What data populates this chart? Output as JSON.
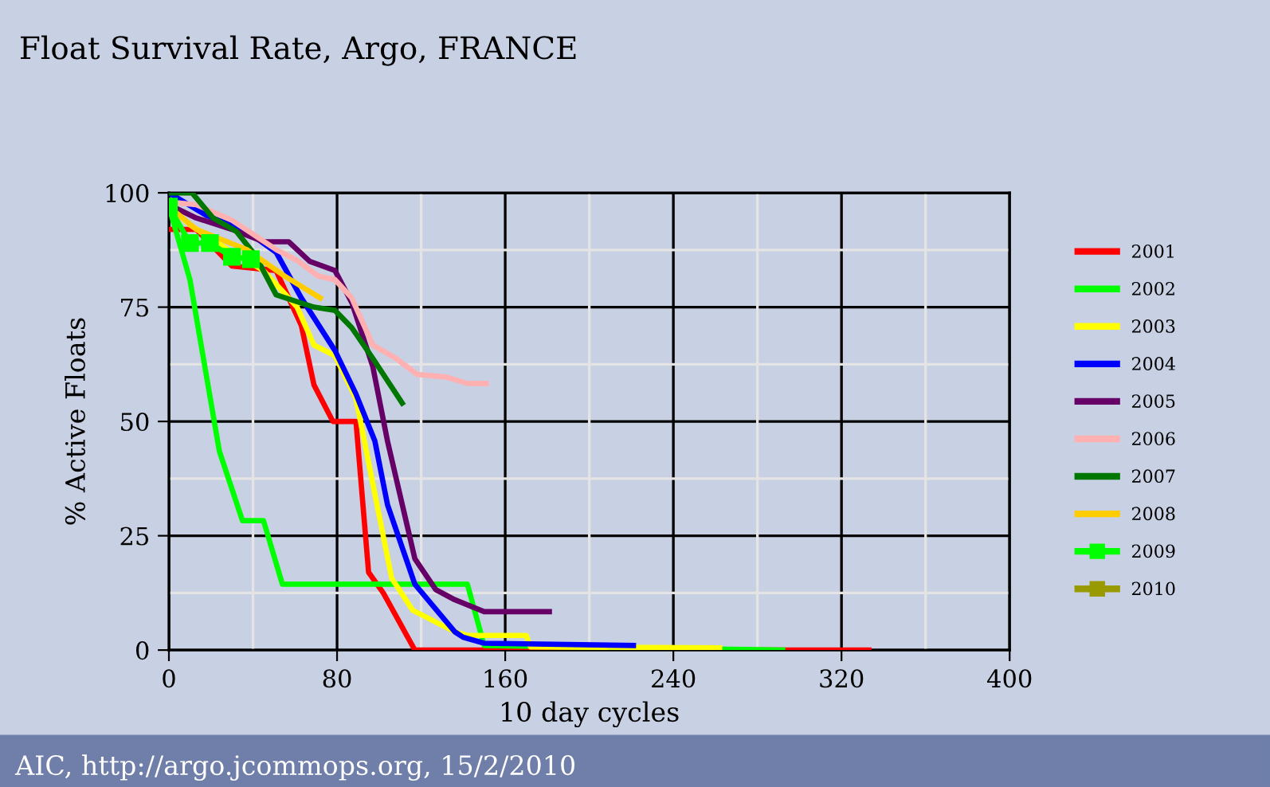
{
  "chart_data": {
    "type": "line",
    "title": "Float Survival Rate, Argo, FRANCE",
    "xlabel": "10 day cycles",
    "ylabel": "% Active Floats",
    "annotations": [
      "AIC, http://argo.jcommops.org, 15/2/2010"
    ],
    "xlim": [
      0,
      400
    ],
    "xticks": [
      0,
      80,
      160,
      240,
      320,
      400
    ],
    "ylim": [
      0,
      100
    ],
    "yticks": [
      0,
      25,
      50,
      75,
      100
    ],
    "grid": true,
    "legend": "right",
    "marker": "none",
    "line_style": "solid",
    "series": [
      {
        "name": "2001",
        "color": "#ff0000",
        "x": [
          0,
          13,
          30,
          51,
          63,
          69,
          78,
          89,
          95,
          102,
          117,
          333
        ],
        "values": [
          92,
          92,
          84,
          83,
          71,
          58,
          50,
          50,
          17,
          12.5,
          0,
          0
        ]
      },
      {
        "name": "2002",
        "color": "#00ff00",
        "x": [
          0,
          10,
          24,
          35,
          45,
          54,
          142,
          150,
          292
        ],
        "values": [
          97,
          81,
          43.5,
          28.3,
          28.3,
          14.4,
          14.4,
          1,
          0
        ]
      },
      {
        "name": "2003",
        "color": "#ffff00",
        "x": [
          0,
          10,
          30,
          45,
          61,
          69,
          79,
          89,
          96,
          106,
          116,
          136,
          142,
          170,
          172,
          262
        ],
        "values": [
          97,
          93,
          87,
          83,
          75,
          66.7,
          64.4,
          55,
          38.7,
          15.7,
          8.7,
          4,
          3.2,
          3.2,
          0.7,
          0.5
        ]
      },
      {
        "name": "2004",
        "color": "#0000ff",
        "x": [
          0,
          18,
          37,
          51,
          63,
          79,
          89,
          98,
          104,
          117,
          136,
          140,
          150,
          221
        ],
        "values": [
          100,
          95,
          91.6,
          87,
          77,
          65.5,
          56,
          45.7,
          31.8,
          14.4,
          4,
          2.8,
          1.5,
          1
        ]
      },
      {
        "name": "2005",
        "color": "#660066",
        "x": [
          0,
          13,
          30,
          45,
          57,
          67,
          79,
          87,
          97,
          104,
          117,
          127,
          136,
          150,
          181
        ],
        "values": [
          97.4,
          94.5,
          92,
          89.3,
          89.3,
          85,
          83,
          76,
          62,
          45.7,
          20,
          13.2,
          11,
          8.4,
          8.4
        ]
      },
      {
        "name": "2006",
        "color": "#ffb0b0",
        "x": [
          0,
          13,
          30,
          51,
          61,
          71,
          79,
          87,
          97,
          108,
          118,
          132,
          142,
          151
        ],
        "values": [
          98,
          97.4,
          94,
          87.6,
          85.2,
          81.8,
          81,
          77,
          66.7,
          63.8,
          60.3,
          59.7,
          58.3,
          58.3
        ]
      },
      {
        "name": "2007",
        "color": "#007700",
        "x": [
          0,
          11,
          21,
          32,
          41,
          51,
          69,
          79,
          87,
          97,
          111
        ],
        "values": [
          100,
          100,
          94.5,
          91.6,
          86.4,
          77.7,
          75,
          74.3,
          70.5,
          63.8,
          54
        ]
      },
      {
        "name": "2008",
        "color": "#ffcc00",
        "x": [
          0,
          13,
          37,
          55,
          72
        ],
        "values": [
          97,
          92,
          87.6,
          81.8,
          77
        ]
      },
      {
        "name": "2009",
        "color": "#00ff00",
        "marker": "square",
        "x": [
          0,
          10,
          19.5,
          30,
          39
        ],
        "values": [
          97,
          89,
          89,
          86,
          85.5
        ]
      },
      {
        "name": "2010",
        "color": "#999900",
        "marker": "square"
      }
    ]
  }
}
